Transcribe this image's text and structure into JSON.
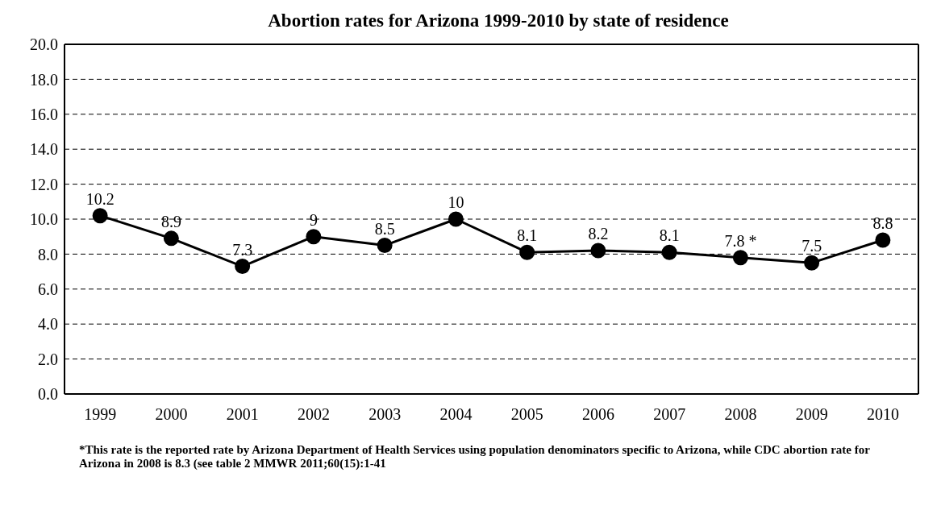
{
  "chart_data": {
    "type": "line",
    "title": "Abortion rates for  Arizona 1999-2010 by state of residence",
    "categories": [
      "1999",
      "2000",
      "2001",
      "2002",
      "2003",
      "2004",
      "2005",
      "2006",
      "2007",
      "2008",
      "2009",
      "2010"
    ],
    "series": [
      {
        "color": "#000000",
        "values": [
          10.2,
          8.9,
          7.3,
          9,
          8.5,
          10,
          8.1,
          8.2,
          8.1,
          7.8,
          7.5,
          8.8
        ],
        "value_labels": [
          "10.2",
          "8.9",
          "7.3",
          "9",
          "8.5",
          "10",
          "8.1",
          "8.2",
          "8.1",
          "7.8 *",
          "7.5",
          "8.8"
        ]
      }
    ],
    "ylim": [
      0,
      20
    ],
    "yticks": [
      {
        "value": 0,
        "label": "0.0"
      },
      {
        "value": 2,
        "label": "2.0"
      },
      {
        "value": 4,
        "label": "4.0"
      },
      {
        "value": 6,
        "label": "6.0"
      },
      {
        "value": 8,
        "label": "8.0"
      },
      {
        "value": 10,
        "label": "10.0"
      },
      {
        "value": 12,
        "label": "12.0"
      },
      {
        "value": 14,
        "label": "14.0"
      },
      {
        "value": 16,
        "label": "16.0"
      },
      {
        "value": 18,
        "label": "18.0"
      },
      {
        "value": 20,
        "label": "20.0"
      }
    ],
    "grid": "y",
    "marker": "circle",
    "line_style": "solid",
    "annotations": [
      "*This rate is the reported rate by Arizona Department of Health Services using population denominators specific to Arizona, while CDC abortion rate for Arizona in 2008 is 8.3 (see table 2 MMWR 2011;60(15):1-41"
    ]
  }
}
